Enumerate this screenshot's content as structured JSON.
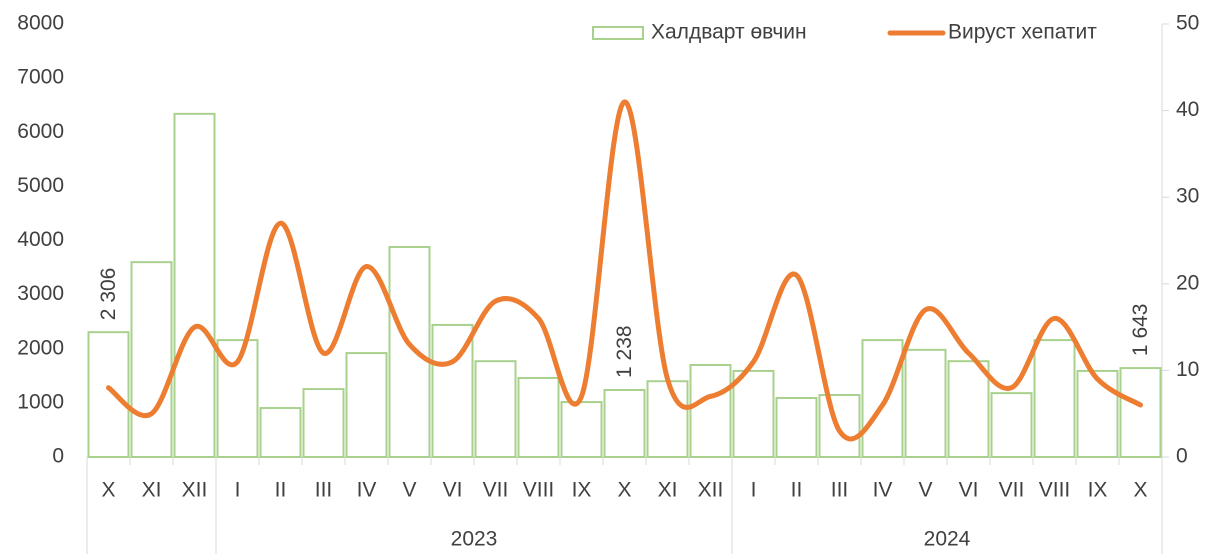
{
  "chart_data": {
    "type": "bar-line",
    "categories": [
      "X",
      "XI",
      "XII",
      "I",
      "II",
      "III",
      "IV",
      "V",
      "VI",
      "VII",
      "VIII",
      "IX",
      "X",
      "XI",
      "XII",
      "I",
      "II",
      "III",
      "IV",
      "V",
      "VI",
      "VII",
      "VIII",
      "IX",
      "X"
    ],
    "groups": [
      {
        "label": null,
        "span": 3
      },
      {
        "label": "2023",
        "span": 12
      },
      {
        "label": "2024",
        "span": 10
      }
    ],
    "series": [
      {
        "name": "Халдварт өвчин",
        "type": "bar",
        "color": "#a9d18e",
        "axis": "y",
        "values": [
          2306,
          3600,
          6340,
          2160,
          905,
          1255,
          1920,
          3880,
          2440,
          1770,
          1460,
          1015,
          1238,
          1400,
          1700,
          1590,
          1090,
          1145,
          2160,
          1980,
          1770,
          1180,
          2160,
          1590,
          1643
        ],
        "value_labels": [
          "2 306",
          null,
          null,
          null,
          null,
          null,
          null,
          null,
          null,
          null,
          null,
          null,
          "1 238",
          null,
          null,
          null,
          null,
          null,
          null,
          null,
          null,
          null,
          null,
          null,
          "1 643"
        ]
      },
      {
        "name": "Вируст хепатит",
        "type": "line",
        "color": "#ed7d31",
        "axis": "y2",
        "values": [
          8,
          5,
          15,
          11,
          27,
          12,
          22,
          13,
          11,
          18,
          16,
          7,
          41,
          9,
          7,
          11,
          21,
          3,
          6,
          17,
          12,
          8,
          16,
          9,
          6
        ]
      }
    ],
    "ylim": [
      0,
      8000
    ],
    "yticks": [
      0,
      1000,
      2000,
      3000,
      4000,
      5000,
      6000,
      7000,
      8000
    ],
    "y2lim": [
      0,
      50
    ],
    "y2ticks": [
      0,
      10,
      20,
      30,
      40,
      50
    ],
    "grid": false,
    "legend": "top"
  }
}
